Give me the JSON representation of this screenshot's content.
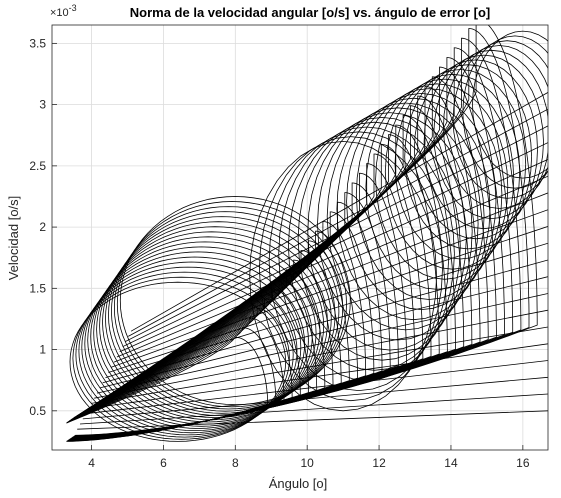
{
  "chart_data": {
    "type": "line",
    "title": "Norma de la velocidad angular [o/s] vs. ángulo de error [o]",
    "xlabel": "Ángulo [o]",
    "ylabel": "Velocidad [o/s]",
    "y_exponent_label": "×10",
    "y_exponent_power": "-3",
    "xlim": [
      2.9,
      16.7
    ],
    "ylim": [
      0.18,
      3.65
    ],
    "y_scale_factor": 0.001,
    "grid": true,
    "legend": "none",
    "line_color": "#000000",
    "x_ticks": [
      4,
      6,
      8,
      10,
      12,
      14,
      16
    ],
    "x_tick_labels": [
      "4",
      "6",
      "8",
      "10",
      "12",
      "14",
      "16"
    ],
    "y_ticks": [
      0.5,
      1,
      1.5,
      2,
      2.5,
      3,
      3.5
    ],
    "y_tick_labels": [
      "0.5",
      "1",
      "1.5",
      "2",
      "2.5",
      "3",
      "3.5"
    ],
    "approx_orbit_envelope": {
      "min_angle": 3.3,
      "max_angle": 16.7,
      "min_velocity": 0.25,
      "max_velocity": 3.55,
      "fold_point": [
        8.9,
        1.85
      ]
    }
  }
}
